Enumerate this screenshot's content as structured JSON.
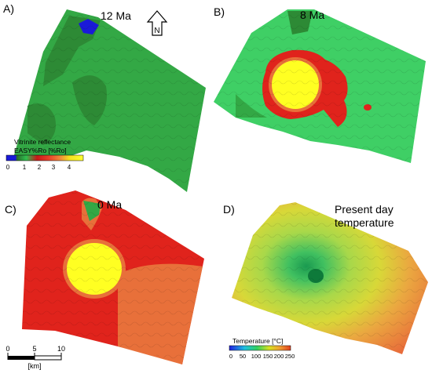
{
  "panels": [
    {
      "letter": "A)",
      "age": "12 Ma"
    },
    {
      "letter": "B)",
      "age": "8 Ma"
    },
    {
      "letter": "C)",
      "age": "0 Ma"
    },
    {
      "letter": "D)",
      "title_line1": "Present day",
      "title_line2": "temperature"
    }
  ],
  "north_arrow": {
    "label": "N"
  },
  "vr_legend": {
    "title_line1": "Vitrinite reflectance",
    "title_line2": "EASY%Ro [%Ro]",
    "ticks": [
      "0",
      "1",
      "2",
      "3",
      "4"
    ],
    "colors": [
      "#1a1ad8",
      "#2a6e2a",
      "#2fbf4f",
      "#c81a1a",
      "#e83a2a",
      "#f08a3a",
      "#f5e020",
      "#ffff30"
    ]
  },
  "temp_legend": {
    "title": "Temperature [°C]",
    "ticks": [
      "0",
      "50",
      "100",
      "150",
      "200",
      "250"
    ],
    "colors": [
      "#2020e0",
      "#20c0e0",
      "#30d060",
      "#d8e020",
      "#f0a030",
      "#e04020"
    ]
  },
  "scale_bar": {
    "ticks": [
      "0",
      "5",
      "10"
    ],
    "unit": "[km]"
  },
  "colors": {
    "dark_green": "#2d8a35",
    "mid_green": "#33a845",
    "light_green": "#3fcf65",
    "red": "#e0231c",
    "orange": "#e8703a",
    "yellow": "#ffff22"
  }
}
